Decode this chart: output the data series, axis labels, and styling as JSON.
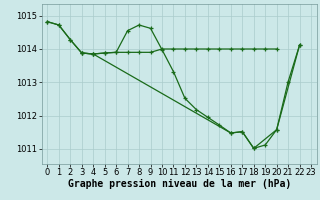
{
  "background_color": "#cce8e8",
  "grid_color": "#aacccc",
  "line_color": "#1a6b1a",
  "xlabel": "Graphe pression niveau de la mer (hPa)",
  "xlabel_fontsize": 7,
  "tick_fontsize": 6,
  "xlim": [
    -0.5,
    23.5
  ],
  "ylim": [
    1010.55,
    1015.35
  ],
  "yticks": [
    1011,
    1012,
    1013,
    1014,
    1015
  ],
  "xticks": [
    0,
    1,
    2,
    3,
    4,
    5,
    6,
    7,
    8,
    9,
    10,
    11,
    12,
    13,
    14,
    15,
    16,
    17,
    18,
    19,
    20,
    21,
    22,
    23
  ],
  "series1_x": [
    0,
    1,
    2,
    3,
    4,
    5,
    6,
    7,
    8,
    9,
    10,
    11,
    12,
    13,
    14,
    15,
    16,
    17,
    18,
    19,
    20,
    21,
    22
  ],
  "series1_y": [
    1014.82,
    1014.72,
    1014.28,
    1013.88,
    1013.85,
    1013.88,
    1013.9,
    1014.55,
    1014.72,
    1014.62,
    1013.98,
    1013.32,
    1012.52,
    1012.18,
    1011.95,
    1011.72,
    1011.48,
    1011.52,
    1011.02,
    1011.12,
    1011.58,
    1013.02,
    1014.12
  ],
  "series2_x": [
    0,
    1,
    2,
    3,
    4,
    5,
    6,
    7,
    8,
    9,
    10,
    11,
    12,
    13,
    14,
    15,
    16,
    17,
    18,
    19,
    20
  ],
  "series2_y": [
    1014.82,
    1014.72,
    1014.28,
    1013.88,
    1013.85,
    1013.88,
    1013.9,
    1013.9,
    1013.9,
    1013.9,
    1014.0,
    1014.0,
    1014.0,
    1014.0,
    1014.0,
    1014.0,
    1014.0,
    1014.0,
    1014.0,
    1014.0,
    1014.0
  ],
  "series3_x": [
    3,
    4,
    16,
    17,
    18,
    20,
    22
  ],
  "series3_y": [
    1013.88,
    1013.85,
    1011.48,
    1011.52,
    1011.02,
    1011.58,
    1014.12
  ]
}
